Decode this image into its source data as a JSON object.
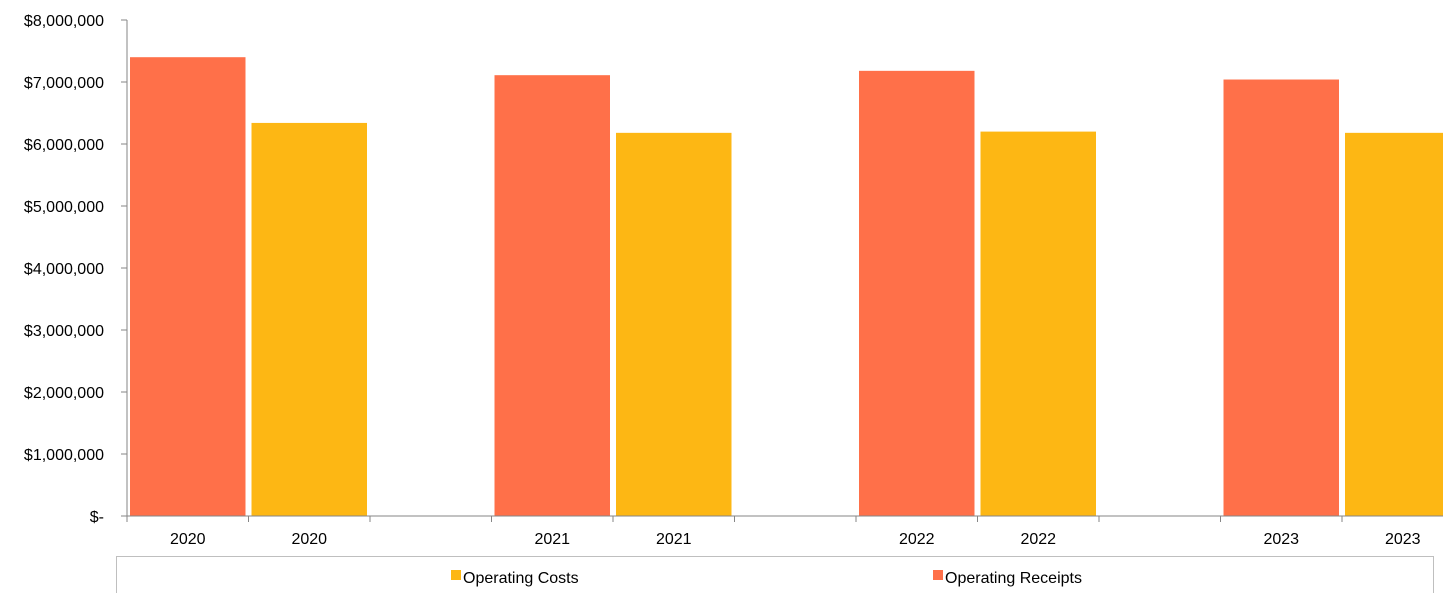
{
  "chart_data": {
    "type": "bar",
    "categories": [
      "2020",
      "2020",
      "2021",
      "2021",
      "2022",
      "2022",
      "2023",
      "2023"
    ],
    "series": [
      {
        "name": "Operating Receipts",
        "color": "#FF7049",
        "values": [
          7400000,
          null,
          7110000,
          null,
          7180000,
          null,
          7040000,
          null
        ]
      },
      {
        "name": "Operating Costs",
        "color": "#FDB714",
        "values": [
          null,
          6340000,
          null,
          6180000,
          null,
          6200000,
          null,
          6180000
        ]
      }
    ],
    "ylim": [
      0,
      8000000
    ],
    "y_ticks": [
      0,
      1000000,
      2000000,
      3000000,
      4000000,
      5000000,
      6000000,
      7000000,
      8000000
    ],
    "y_tick_labels": [
      "$-",
      "$1,000,000",
      "$2,000,000",
      "$3,000,000",
      "$4,000,000",
      "$5,000,000",
      "$6,000,000",
      "$7,000,000",
      "$8,000,000"
    ],
    "legend": {
      "placement": "bottom",
      "entries": [
        {
          "label": "Operating Costs",
          "color": "#FDB714"
        },
        {
          "label": "Operating Receipts",
          "color": "#FF7049"
        }
      ]
    },
    "grid": false
  }
}
